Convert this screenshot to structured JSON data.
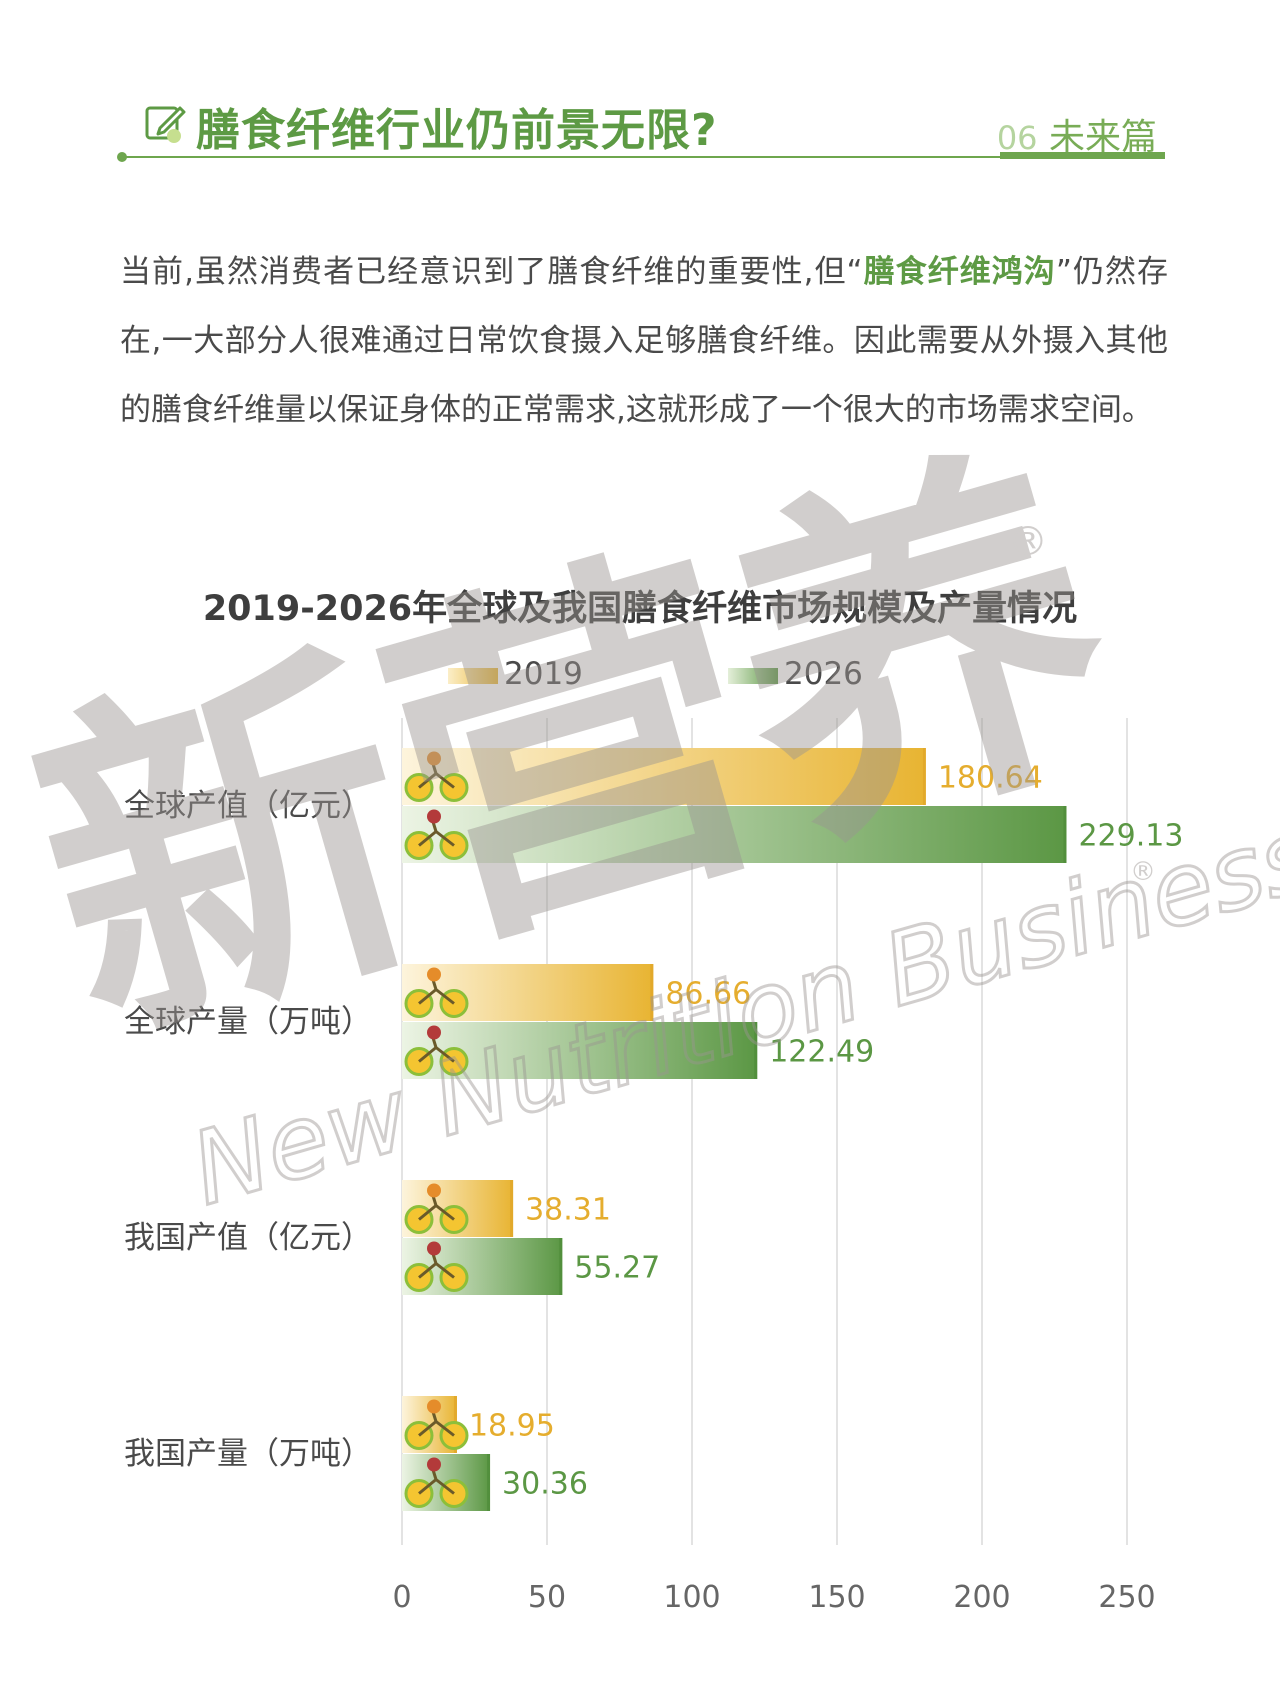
{
  "header": {
    "title": "膳食纤维行业仍前景无限?",
    "section_number": "06",
    "section_name": "未来篇"
  },
  "intro": {
    "before": "当前,虽然消费者已经意识到了膳食纤维的重要性,但“",
    "highlight": "膳食纤维鸿沟",
    "after": "”仍然存在,一大部分人很难通过日常饮食摄入足够膳食纤维。因此需要从外摄入其他的膳食纤维量以保证身体的正常需求,这就形成了一个很大的市场需求空间。"
  },
  "watermark": {
    "cn": "新营养",
    "en": "New Nutrition Business",
    "registered": "®"
  },
  "colors": {
    "brand_green": "#5d9a44",
    "series_2019": "#e8b432",
    "series_2026": "#5b9744",
    "label_2019": "#e5ad2e",
    "label_2026": "#5b9744"
  },
  "chart_data": {
    "type": "bar",
    "orientation": "horizontal",
    "title": "2019-2026年全球及我国膳食纤维市场规模及产量情况",
    "categories": [
      "全球产值（亿元）",
      "全球产量（万吨）",
      "我国产值（亿元）",
      "我国产量（万吨）"
    ],
    "series": [
      {
        "name": "2019",
        "values": [
          180.64,
          86.66,
          38.31,
          18.95
        ]
      },
      {
        "name": "2026",
        "values": [
          229.13,
          122.49,
          55.27,
          30.36
        ]
      }
    ],
    "xlim": [
      0,
      250
    ],
    "xticks": [
      0,
      50,
      100,
      150,
      200,
      250
    ],
    "grid": true,
    "legend_position": "top"
  }
}
